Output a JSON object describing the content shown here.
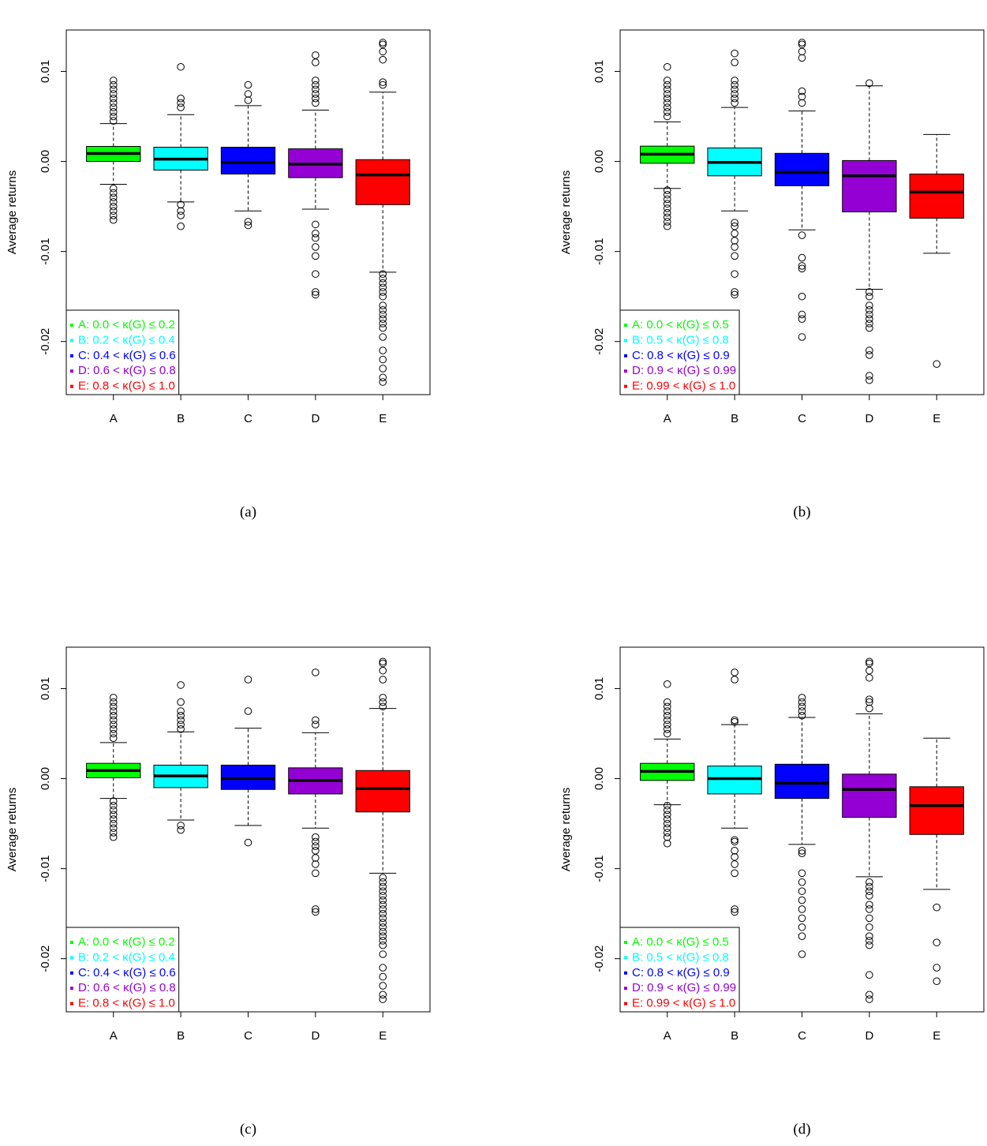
{
  "chart_data": [
    {
      "type": "box",
      "label": "(a)",
      "ylabel": "Average returns",
      "categories": [
        "A",
        "B",
        "C",
        "D",
        "E"
      ],
      "ylim": [
        -0.0259,
        0.0146
      ],
      "yticks": [
        0.01,
        {
          "value": 0,
          "label": "0.00"
        },
        -0.01,
        -0.02
      ],
      "legend_position": "bottom-left",
      "boxes": [
        {
          "name": "A: 0.0 < κ(G) ≤ 0.2",
          "color": "#00ff00",
          "whisker_low": -0.00254,
          "q1": 0.0,
          "median": 0.00088,
          "q3": 0.00167,
          "whisker_high": 0.0042,
          "outliers": [
            0.0045,
            0.005,
            0.0055,
            0.006,
            0.0065,
            0.007,
            0.0075,
            0.008,
            0.0085,
            0.009,
            -0.003,
            -0.0035,
            -0.004,
            -0.0045,
            -0.005,
            -0.0055,
            -0.006,
            -0.0065
          ]
        },
        {
          "name": "B: 0.2 < κ(G) ≤ 0.4",
          "color": "#00ffff",
          "whisker_low": -0.0045,
          "q1": -0.00096,
          "median": 0.00026,
          "q3": 0.00158,
          "whisker_high": 0.0052,
          "outliers": [
            0.006,
            0.0065,
            0.007,
            0.0105,
            -0.0048,
            -0.0055,
            -0.006,
            -0.0072
          ]
        },
        {
          "name": "C: 0.4 < κ(G) ≤ 0.6",
          "color": "#0000ff",
          "whisker_low": -0.0055,
          "q1": -0.0014,
          "median": -0.0001,
          "q3": 0.00158,
          "whisker_high": 0.0062,
          "outliers": [
            0.0068,
            0.0075,
            0.0085,
            -0.0067,
            -0.0071
          ]
        },
        {
          "name": "D: 0.6 < κ(G) ≤ 0.8",
          "color": "#9400d3",
          "whisker_low": -0.0053,
          "q1": -0.0018,
          "median": -0.0003,
          "q3": 0.0014,
          "whisker_high": 0.0057,
          "outliers": [
            0.0065,
            0.007,
            0.0075,
            0.008,
            0.0085,
            0.009,
            0.011,
            0.0118,
            -0.007,
            -0.008,
            -0.0085,
            -0.0095,
            -0.0105,
            -0.0125,
            -0.0145,
            -0.0148
          ]
        },
        {
          "name": "E: 0.8 < κ(G) ≤ 1.0",
          "color": "#ff0000",
          "whisker_low": -0.0123,
          "q1": -0.0048,
          "median": -0.0015,
          "q3": 0.0002,
          "whisker_high": 0.0077,
          "outliers": [
            0.0085,
            0.0088,
            0.0113,
            0.0122,
            0.013,
            0.0132,
            -0.0125,
            -0.013,
            -0.0135,
            -0.014,
            -0.0145,
            -0.015,
            -0.016,
            -0.0165,
            -0.017,
            -0.0175,
            -0.018,
            -0.0185,
            -0.0195,
            -0.021,
            -0.022,
            -0.023,
            -0.024,
            -0.0245
          ]
        }
      ]
    },
    {
      "type": "box",
      "label": "(b)",
      "ylabel": "Average returns",
      "categories": [
        "A",
        "B",
        "C",
        "D",
        "E"
      ],
      "ylim": [
        -0.0259,
        0.0146
      ],
      "yticks": [
        0.01,
        {
          "value": 0,
          "label": "0.00"
        },
        -0.01,
        -0.02
      ],
      "legend_position": "bottom-left",
      "boxes": [
        {
          "name": "A: 0.0 < κ(G) ≤ 0.5",
          "color": "#00ff00",
          "whisker_low": -0.003,
          "q1": -0.0002,
          "median": 0.0008,
          "q3": 0.0017,
          "whisker_high": 0.0044,
          "outliers": [
            0.005,
            0.0055,
            0.006,
            0.0065,
            0.007,
            0.0075,
            0.008,
            0.0085,
            0.009,
            0.0105,
            -0.0032,
            -0.0037,
            -0.0042,
            -0.0047,
            -0.0052,
            -0.0057,
            -0.0062,
            -0.0067,
            -0.0072
          ]
        },
        {
          "name": "B: 0.5 < κ(G) ≤ 0.8",
          "color": "#00ffff",
          "whisker_low": -0.0055,
          "q1": -0.0016,
          "median": -0.0001,
          "q3": 0.0015,
          "whisker_high": 0.006,
          "outliers": [
            0.0065,
            0.007,
            0.0075,
            0.008,
            0.0085,
            0.009,
            0.011,
            0.012,
            -0.0068,
            -0.0072,
            -0.008,
            -0.0088,
            -0.0095,
            -0.0105,
            -0.0125,
            -0.0145,
            -0.0148
          ]
        },
        {
          "name": "C: 0.8 < κ(G) ≤ 0.9",
          "color": "#0000ff",
          "whisker_low": -0.0076,
          "q1": -0.0027,
          "median": -0.0012,
          "q3": 0.0009,
          "whisker_high": 0.0056,
          "outliers": [
            0.0065,
            0.0072,
            0.0078,
            0.0115,
            0.0122,
            0.013,
            0.0132,
            -0.0082,
            -0.0107,
            -0.0116,
            -0.0119,
            -0.015,
            -0.017,
            -0.0175,
            -0.0195
          ]
        },
        {
          "name": "D: 0.9 < κ(G) ≤ 0.99",
          "color": "#9400d3",
          "whisker_low": -0.0142,
          "q1": -0.0056,
          "median": -0.0016,
          "q3": 0.0001,
          "whisker_high": 0.0084,
          "outliers": [
            0.0087,
            -0.0145,
            -0.015,
            -0.016,
            -0.0165,
            -0.017,
            -0.0175,
            -0.018,
            -0.0185,
            -0.021,
            -0.0215,
            -0.0238,
            -0.0243
          ]
        },
        {
          "name": "E: 0.99 < κ(G) ≤ 1.0",
          "color": "#ff0000",
          "whisker_low": -0.0102,
          "q1": -0.0063,
          "median": -0.0034,
          "q3": -0.0014,
          "whisker_high": 0.003,
          "outliers": [
            -0.0225
          ]
        }
      ]
    },
    {
      "type": "box",
      "label": "(c)",
      "ylabel": "Average returns",
      "categories": [
        "A",
        "B",
        "C",
        "D",
        "E"
      ],
      "ylim": [
        -0.0259,
        0.0146
      ],
      "yticks": [
        0.01,
        {
          "value": 0,
          "label": "0.00"
        },
        -0.01,
        -0.02
      ],
      "legend_position": "bottom-left",
      "boxes": [
        {
          "name": "A: 0.0 < κ(G) ≤ 0.2",
          "color": "#00ff00",
          "whisker_low": -0.0022,
          "q1": 0.0001,
          "median": 0.0009,
          "q3": 0.0017,
          "whisker_high": 0.004,
          "outliers": [
            0.0045,
            0.005,
            0.0055,
            0.006,
            0.0065,
            0.007,
            0.0075,
            0.008,
            0.0085,
            0.009,
            -0.0025,
            -0.003,
            -0.0035,
            -0.004,
            -0.0045,
            -0.005,
            -0.0055,
            -0.006,
            -0.0065
          ]
        },
        {
          "name": "B: 0.2 < κ(G) ≤ 0.4",
          "color": "#00ffff",
          "whisker_low": -0.0046,
          "q1": -0.001,
          "median": 0.0003,
          "q3": 0.0015,
          "whisker_high": 0.0052,
          "outliers": [
            0.0055,
            0.006,
            0.0065,
            0.007,
            0.0075,
            0.0085,
            0.0104,
            -0.0052,
            -0.0057
          ]
        },
        {
          "name": "C: 0.4 < κ(G) ≤ 0.6",
          "color": "#0000ff",
          "whisker_low": -0.0052,
          "q1": -0.0012,
          "median": 0.0,
          "q3": 0.0015,
          "whisker_high": 0.0056,
          "outliers": [
            0.0075,
            0.011,
            -0.0071
          ]
        },
        {
          "name": "D: 0.6 < κ(G) ≤ 0.8",
          "color": "#9400d3",
          "whisker_low": -0.0055,
          "q1": -0.0017,
          "median": -0.0002,
          "q3": 0.0012,
          "whisker_high": 0.0051,
          "outliers": [
            0.006,
            0.0065,
            0.0118,
            -0.0065,
            -0.007,
            -0.0075,
            -0.008,
            -0.0088,
            -0.0095,
            -0.0105,
            -0.0145,
            -0.0148
          ]
        },
        {
          "name": "E: 0.8 < κ(G) ≤ 1.0",
          "color": "#ff0000",
          "whisker_low": -0.0105,
          "q1": -0.0037,
          "median": -0.0011,
          "q3": 0.0009,
          "whisker_high": 0.0078,
          "outliers": [
            0.008,
            0.0085,
            0.009,
            0.011,
            0.012,
            0.0128,
            0.013,
            -0.011,
            -0.0115,
            -0.012,
            -0.0125,
            -0.013,
            -0.0135,
            -0.014,
            -0.0145,
            -0.015,
            -0.0155,
            -0.016,
            -0.0165,
            -0.017,
            -0.0175,
            -0.018,
            -0.0185,
            -0.0195,
            -0.021,
            -0.022,
            -0.023,
            -0.024,
            -0.0245
          ]
        }
      ]
    },
    {
      "type": "box",
      "label": "(d)",
      "ylabel": "Average returns",
      "categories": [
        "A",
        "B",
        "C",
        "D",
        "E"
      ],
      "ylim": [
        -0.0259,
        0.0146
      ],
      "yticks": [
        0.01,
        {
          "value": 0,
          "label": "0.00"
        },
        -0.01,
        -0.02
      ],
      "legend_position": "bottom-left",
      "boxes": [
        {
          "name": "A: 0.0 < κ(G) ≤ 0.5",
          "color": "#00ff00",
          "whisker_low": -0.0029,
          "q1": -0.0002,
          "median": 0.0008,
          "q3": 0.0017,
          "whisker_high": 0.0044,
          "outliers": [
            0.005,
            0.0055,
            0.006,
            0.0065,
            0.007,
            0.0075,
            0.008,
            0.0085,
            0.0105,
            -0.003,
            -0.0035,
            -0.004,
            -0.0045,
            -0.005,
            -0.0055,
            -0.006,
            -0.0065,
            -0.0072
          ]
        },
        {
          "name": "B: 0.5 < κ(G) ≤ 0.8",
          "color": "#00ffff",
          "whisker_low": -0.0055,
          "q1": -0.0017,
          "median": 0.0,
          "q3": 0.0014,
          "whisker_high": 0.006,
          "outliers": [
            0.0063,
            0.0065,
            0.011,
            0.0118,
            -0.0068,
            -0.007,
            -0.008,
            -0.0087,
            -0.0095,
            -0.0105,
            -0.0145,
            -0.0148
          ]
        },
        {
          "name": "C: 0.8 < κ(G) ≤ 0.9",
          "color": "#0000ff",
          "whisker_low": -0.0073,
          "q1": -0.0022,
          "median": -0.0005,
          "q3": 0.0016,
          "whisker_high": 0.0068,
          "outliers": [
            0.007,
            0.0075,
            0.008,
            0.0085,
            0.009,
            -0.008,
            -0.0083,
            -0.0105,
            -0.0115,
            -0.0125,
            -0.0135,
            -0.0145,
            -0.0155,
            -0.0165,
            -0.0175,
            -0.0195
          ]
        },
        {
          "name": "D: 0.9 < κ(G) ≤ 0.99",
          "color": "#9400d3",
          "whisker_low": -0.0109,
          "q1": -0.0043,
          "median": -0.0012,
          "q3": 0.0005,
          "whisker_high": 0.0072,
          "outliers": [
            0.0078,
            0.0085,
            0.0088,
            0.0112,
            0.012,
            0.0128,
            0.013,
            -0.0115,
            -0.012,
            -0.0125,
            -0.013,
            -0.014,
            -0.0145,
            -0.0155,
            -0.0165,
            -0.0175,
            -0.018,
            -0.0185,
            -0.0218,
            -0.024,
            -0.0245
          ]
        },
        {
          "name": "E: 0.99 < κ(G) ≤ 1.0",
          "color": "#ff0000",
          "whisker_low": -0.0123,
          "q1": -0.0062,
          "median": -0.003,
          "q3": -0.0009,
          "whisker_high": 0.0045,
          "outliers": [
            -0.0143,
            -0.0182,
            -0.021,
            -0.0225
          ]
        }
      ]
    }
  ]
}
